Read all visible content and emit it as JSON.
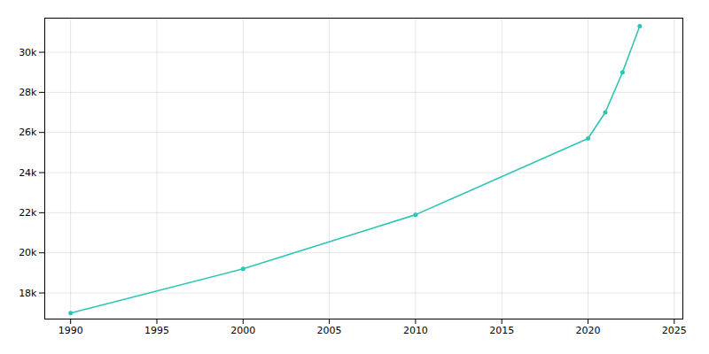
{
  "chart_data": {
    "type": "line",
    "x": [
      1990,
      2000,
      2010,
      2020,
      2021,
      2022,
      2023
    ],
    "values": [
      17000,
      19200,
      21900,
      25700,
      27000,
      29000,
      31300
    ],
    "color": "#2ec4b6",
    "marker": "circle",
    "xlim": [
      1988.5,
      2025.5
    ],
    "xticks": [
      1990,
      1995,
      2000,
      2005,
      2010,
      2015,
      2020,
      2025
    ],
    "ylim": [
      16700,
      31700
    ],
    "yticks": [
      {
        "value": 18000,
        "label": "18k"
      },
      {
        "value": 20000,
        "label": "20k"
      },
      {
        "value": 22000,
        "label": "22k"
      },
      {
        "value": 24000,
        "label": "24k"
      },
      {
        "value": 26000,
        "label": "26k"
      },
      {
        "value": 28000,
        "label": "28k"
      },
      {
        "value": 30000,
        "label": "30k"
      }
    ],
    "grid": true
  }
}
